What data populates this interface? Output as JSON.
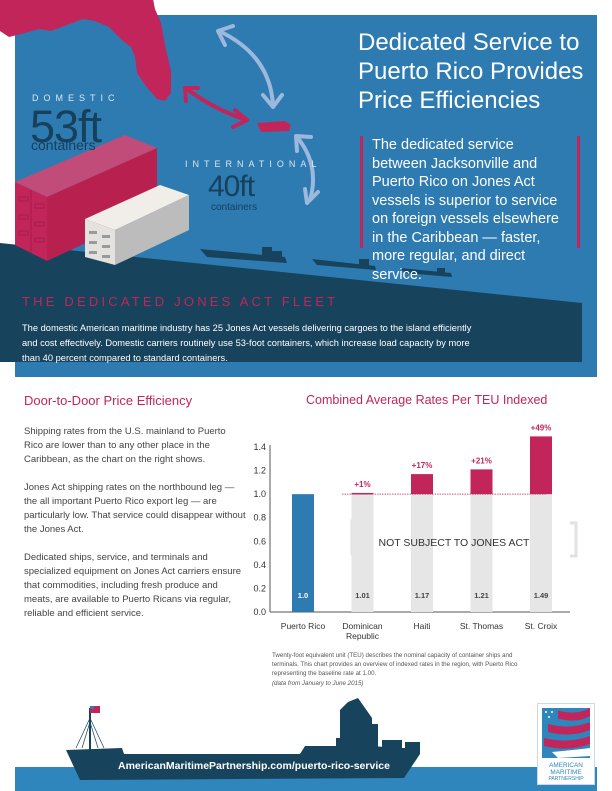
{
  "hero": {
    "title_lines": [
      "Dedicated Service to",
      "Puerto Rico Provides",
      "Price Efficiencies"
    ],
    "quote": "The dedicated service between Jacksonville and Puerto Rico on Jones Act vessels is superior to service on foreign vessels elsewhere in the Caribbean — faster, more regular, and direct service.",
    "domestic_label": "DOMESTIC",
    "domestic_size": "53ft",
    "domestic_sub": "containers",
    "international_label": "INTERNATIONAL",
    "international_size": "40ft",
    "international_sub": "containers",
    "illustrations": [
      "florida-map",
      "puerto-rico-map",
      "domestic-route-arrow",
      "international-route-arrows",
      "container-53ft",
      "container-40ft",
      "ship-silhouettes"
    ]
  },
  "fleet": {
    "title": "THE DEDICATED JONES ACT FLEET",
    "text": "The domestic American maritime industry has 25 Jones Act vessels delivering cargoes to the island efficiently and cost effectively. Domestic carriers routinely use 53-foot containers, which increase load capacity by more than 40 percent compared to standard containers."
  },
  "left_section": {
    "title": "Door-to-Door Price Efficiency",
    "paragraphs": [
      "Shipping rates from the U.S. mainland to Puerto Rico are lower than to any other place in the Caribbean, as the chart on the right shows.",
      "Jones Act shipping rates on the northbound leg — the all important Puerto Rico export leg — are particularly low.  That service could disappear without the Jones Act.",
      "Dedicated ships, service, and terminals and specialized equipment on Jones Act carriers ensure that commodities, including fresh produce and meats, are available to Puerto Ricans via regular, reliable and efficient service."
    ]
  },
  "chart_data": {
    "type": "bar",
    "title": "Combined Average Rates Per TEU Indexed",
    "xlabel": "",
    "ylabel": "",
    "categories": [
      "Puerto Rico",
      "Dominican Republic",
      "Haiti",
      "St. Thomas",
      "St. Croix"
    ],
    "category_lines": [
      [
        "Puerto Rico"
      ],
      [
        "Dominican",
        "Republic"
      ],
      [
        "Haiti"
      ],
      [
        "St. Thomas"
      ],
      [
        "St. Croix"
      ]
    ],
    "values": [
      1.0,
      1.01,
      1.17,
      1.21,
      1.49
    ],
    "value_labels": [
      "1.0",
      "1.01",
      "1.17",
      "1.21",
      "1.49"
    ],
    "increase_labels": [
      "",
      "+1%",
      "+17%",
      "+21%",
      "+49%"
    ],
    "baseline": 1.0,
    "ylim": [
      0,
      1.4
    ],
    "yticks": [
      "0.0",
      "0.2",
      "0.4",
      "0.6",
      "0.8",
      "1.0",
      "1.2",
      "1.4"
    ],
    "annotation": "NOT SUBJECT TO JONES ACT",
    "grid": false,
    "colors": {
      "baseline_bar": "#2e7bb1",
      "excess": "#c2255a",
      "non_jones_bar": "#e6e6e6",
      "label": "#c2255a"
    }
  },
  "footnote": {
    "text": "Twenty-foot equivalent unit (TEU) describes the nominal capacity of container ships and terminals. This chart provides an overview of indexed rates in the region, with Puerto Rico representing the baseline rate at 1.00.",
    "italic": "(data from January to June 2015)"
  },
  "footer": {
    "url": "AmericanMaritimePartnership.com/puerto-rico-service",
    "logo_lines": [
      "AMERICAN",
      "MARITIME",
      "PARTNERSHIP"
    ]
  },
  "colors": {
    "brand_blue": "#2e7bb1",
    "dark_navy": "#17435c",
    "accent_red": "#c2255a",
    "arrow_light": "#9cb8dc"
  }
}
